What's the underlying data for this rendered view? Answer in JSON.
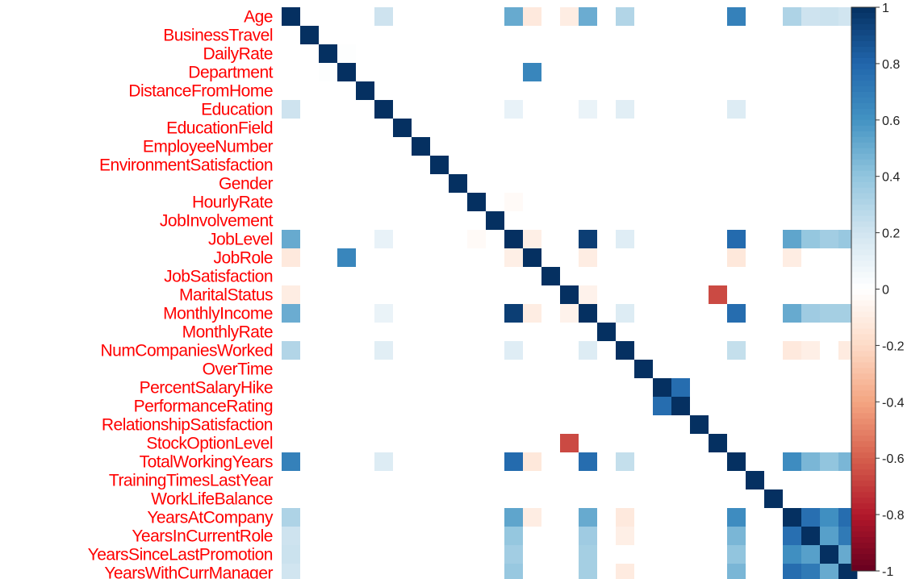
{
  "chart_data": {
    "type": "heatmap",
    "title": "",
    "variables": [
      "Age",
      "BusinessTravel",
      "DailyRate",
      "Department",
      "DistanceFromHome",
      "Education",
      "EducationField",
      "EmployeeNumber",
      "EnvironmentSatisfaction",
      "Gender",
      "HourlyRate",
      "JobInvolvement",
      "JobLevel",
      "JobRole",
      "JobSatisfaction",
      "MaritalStatus",
      "MonthlyIncome",
      "MonthlyRate",
      "NumCompaniesWorked",
      "OverTime",
      "PercentSalaryHike",
      "PerformanceRating",
      "RelationshipSatisfaction",
      "StockOptionLevel",
      "TotalWorkingYears",
      "TrainingTimesLastYear",
      "WorkLifeBalance",
      "YearsAtCompany",
      "YearsInCurrentRole",
      "YearsSinceLastPromotion",
      "YearsWithCurrManager"
    ],
    "label_color": "#ff0000",
    "value_range": [
      -1,
      1
    ],
    "colorbar_ticks": [
      "1",
      "0.8",
      "0.6",
      "0.4",
      "0.2",
      "0",
      "-0.2",
      "-0.4",
      "-0.6",
      "-0.8",
      "-1"
    ],
    "colorbar_tick_values": [
      1,
      0.8,
      0.6,
      0.4,
      0.2,
      0,
      -0.2,
      -0.4,
      -0.6,
      -0.8,
      -1
    ],
    "color_scale": {
      "negative": "#67001f",
      "mid": "#ffffff",
      "positive": "#053061"
    },
    "strong_correlations": [
      {
        "a": "Age",
        "b": "JobLevel",
        "value": 0.51
      },
      {
        "a": "Age",
        "b": "MonthlyIncome",
        "value": 0.5
      },
      {
        "a": "Age",
        "b": "NumCompaniesWorked",
        "value": 0.3
      },
      {
        "a": "Age",
        "b": "Education",
        "value": 0.21
      },
      {
        "a": "Age",
        "b": "TotalWorkingYears",
        "value": 0.68
      },
      {
        "a": "Age",
        "b": "YearsAtCompany",
        "value": 0.31
      },
      {
        "a": "Age",
        "b": "YearsInCurrentRole",
        "value": 0.21
      },
      {
        "a": "Age",
        "b": "YearsSinceLastPromotion",
        "value": 0.22
      },
      {
        "a": "Age",
        "b": "YearsWithCurrManager",
        "value": 0.2
      },
      {
        "a": "Department",
        "b": "JobRole",
        "value": 0.66
      },
      {
        "a": "JobLevel",
        "b": "MonthlyIncome",
        "value": 0.95
      },
      {
        "a": "JobLevel",
        "b": "TotalWorkingYears",
        "value": 0.78
      },
      {
        "a": "JobLevel",
        "b": "YearsAtCompany",
        "value": 0.53
      },
      {
        "a": "JobLevel",
        "b": "YearsInCurrentRole",
        "value": 0.39
      },
      {
        "a": "JobLevel",
        "b": "YearsSinceLastPromotion",
        "value": 0.35
      },
      {
        "a": "JobLevel",
        "b": "YearsWithCurrManager",
        "value": 0.38
      },
      {
        "a": "MonthlyIncome",
        "b": "TotalWorkingYears",
        "value": 0.77
      },
      {
        "a": "MonthlyIncome",
        "b": "YearsAtCompany",
        "value": 0.51
      },
      {
        "a": "MonthlyIncome",
        "b": "YearsInCurrentRole",
        "value": 0.36
      },
      {
        "a": "MonthlyIncome",
        "b": "YearsSinceLastPromotion",
        "value": 0.34
      },
      {
        "a": "MonthlyIncome",
        "b": "YearsWithCurrManager",
        "value": 0.34
      },
      {
        "a": "MonthlyIncome",
        "b": "NumCompaniesWorked",
        "value": 0.15
      },
      {
        "a": "JobLevel",
        "b": "NumCompaniesWorked",
        "value": 0.14
      },
      {
        "a": "NumCompaniesWorked",
        "b": "TotalWorkingYears",
        "value": 0.24
      },
      {
        "a": "PercentSalaryHike",
        "b": "PerformanceRating",
        "value": 0.77
      },
      {
        "a": "MaritalStatus",
        "b": "StockOptionLevel",
        "value": -0.66
      },
      {
        "a": "TotalWorkingYears",
        "b": "YearsAtCompany",
        "value": 0.63
      },
      {
        "a": "TotalWorkingYears",
        "b": "YearsInCurrentRole",
        "value": 0.46
      },
      {
        "a": "TotalWorkingYears",
        "b": "YearsSinceLastPromotion",
        "value": 0.4
      },
      {
        "a": "TotalWorkingYears",
        "b": "YearsWithCurrManager",
        "value": 0.46
      },
      {
        "a": "YearsAtCompany",
        "b": "YearsInCurrentRole",
        "value": 0.76
      },
      {
        "a": "YearsAtCompany",
        "b": "YearsSinceLastPromotion",
        "value": 0.62
      },
      {
        "a": "YearsAtCompany",
        "b": "YearsWithCurrManager",
        "value": 0.77
      },
      {
        "a": "YearsInCurrentRole",
        "b": "YearsSinceLastPromotion",
        "value": 0.55
      },
      {
        "a": "YearsInCurrentRole",
        "b": "YearsWithCurrManager",
        "value": 0.71
      },
      {
        "a": "YearsSinceLastPromotion",
        "b": "YearsWithCurrManager",
        "value": 0.51
      },
      {
        "a": "Age",
        "b": "MaritalStatus",
        "value": -0.1
      },
      {
        "a": "Age",
        "b": "JobRole",
        "value": -0.12
      },
      {
        "a": "JobLevel",
        "b": "JobRole",
        "value": -0.09
      },
      {
        "a": "JobRole",
        "b": "MonthlyIncome",
        "value": -0.1
      },
      {
        "a": "JobRole",
        "b": "TotalWorkingYears",
        "value": -0.13
      },
      {
        "a": "JobRole",
        "b": "YearsAtCompany",
        "value": -0.1
      },
      {
        "a": "JobLevel",
        "b": "OverTime",
        "value": 0.0
      },
      {
        "a": "Education",
        "b": "TotalWorkingYears",
        "value": 0.15
      },
      {
        "a": "Education",
        "b": "MonthlyIncome",
        "value": 0.09
      },
      {
        "a": "Education",
        "b": "JobLevel",
        "value": 0.1
      },
      {
        "a": "Education",
        "b": "NumCompaniesWorked",
        "value": 0.13
      },
      {
        "a": "NumCompaniesWorked",
        "b": "YearsAtCompany",
        "value": -0.12
      },
      {
        "a": "NumCompaniesWorked",
        "b": "YearsWithCurrManager",
        "value": -0.11
      },
      {
        "a": "NumCompaniesWorked",
        "b": "YearsInCurrentRole",
        "value": -0.09
      },
      {
        "a": "TotalWorkingYears",
        "b": "WorkLifeBalance",
        "value": 0.0
      },
      {
        "a": "DailyRate",
        "b": "Department",
        "value": 0.01
      },
      {
        "a": "HourlyRate",
        "b": "JobLevel",
        "value": -0.03
      },
      {
        "a": "MaritalStatus",
        "b": "MonthlyIncome",
        "value": -0.07
      }
    ]
  }
}
